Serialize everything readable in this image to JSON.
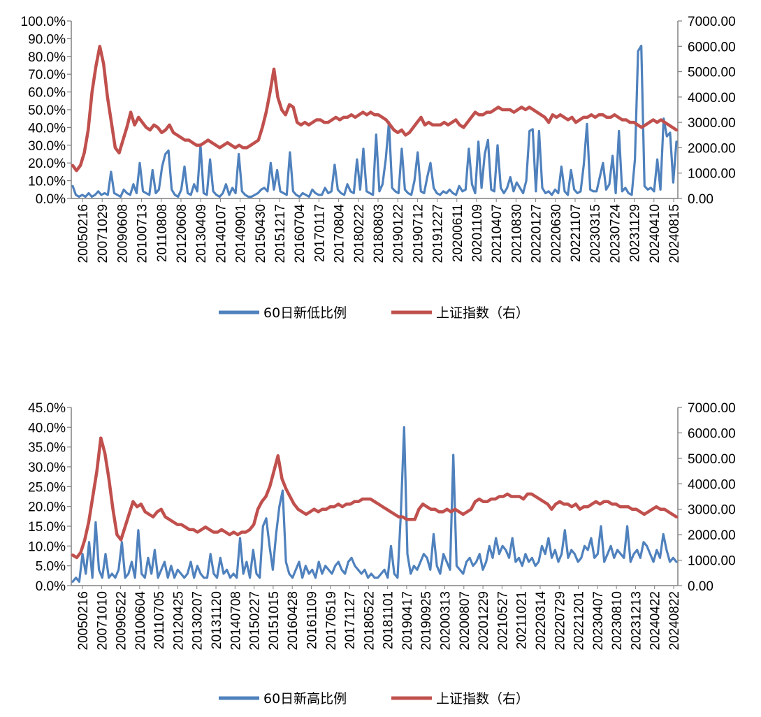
{
  "colors": {
    "blue": "#4F81BD",
    "red": "#C0504D",
    "axis": "#808080"
  },
  "chart_data": [
    {
      "type": "line",
      "title": "",
      "ylim_left": [
        0,
        100
      ],
      "ylim_right": [
        0,
        7000
      ],
      "y_left_ticks": [
        "0.0%",
        "10.0%",
        "20.0%",
        "30.0%",
        "40.0%",
        "50.0%",
        "60.0%",
        "70.0%",
        "80.0%",
        "90.0%",
        "100.0%"
      ],
      "y_right_ticks": [
        "0.00",
        "1000.00",
        "2000.00",
        "3000.00",
        "4000.00",
        "5000.00",
        "6000.00",
        "7000.00"
      ],
      "x_tick_labels": [
        "20050216",
        "20071029",
        "20090608",
        "20100713",
        "20110808",
        "20120608",
        "20130409",
        "20140107",
        "20140901",
        "20150430",
        "20151217",
        "20160704",
        "20170117",
        "20170804",
        "20180222",
        "20180803",
        "20190122",
        "20190712",
        "20191227",
        "20200611",
        "20201109",
        "20210407",
        "20210830",
        "20220127",
        "20220630",
        "20221107",
        "20230315",
        "20230724",
        "20231129",
        "20240410",
        "20240815"
      ],
      "legend_position": "bottom-center",
      "series": [
        {
          "name": "60日新低比例",
          "axis": "left",
          "values": [
            7,
            2,
            1,
            2,
            1,
            3,
            1,
            2,
            4,
            2,
            3,
            2,
            15,
            3,
            2,
            1,
            5,
            3,
            2,
            8,
            3,
            20,
            4,
            3,
            2,
            16,
            3,
            5,
            18,
            25,
            27,
            5,
            2,
            1,
            5,
            18,
            3,
            2,
            8,
            4,
            30,
            3,
            2,
            22,
            4,
            2,
            1,
            3,
            8,
            2,
            6,
            3,
            25,
            4,
            2,
            1,
            1,
            2,
            3,
            5,
            6,
            4,
            20,
            5,
            16,
            4,
            3,
            2,
            26,
            4,
            2,
            1,
            3,
            2,
            1,
            5,
            3,
            2,
            2,
            6,
            3,
            4,
            19,
            5,
            3,
            2,
            8,
            4,
            3,
            22,
            5,
            28,
            4,
            3,
            2,
            36,
            4,
            8,
            22,
            43,
            6,
            4,
            3,
            28,
            5,
            3,
            2,
            10,
            26,
            4,
            3,
            12,
            20,
            6,
            3,
            2,
            4,
            3,
            5,
            3,
            2,
            7,
            4,
            5,
            28,
            8,
            3,
            32,
            6,
            25,
            33,
            5,
            4,
            30,
            6,
            3,
            6,
            12,
            4,
            9,
            6,
            3,
            10,
            38,
            39,
            4,
            38,
            6,
            3,
            4,
            2,
            5,
            3,
            18,
            4,
            2,
            16,
            5,
            3,
            4,
            19,
            42,
            5,
            4,
            4,
            12,
            20,
            5,
            8,
            24,
            3,
            38,
            4,
            6,
            3,
            2,
            22,
            83,
            86,
            7,
            5,
            6,
            4,
            22,
            5,
            45,
            35,
            37,
            9,
            32
          ]
        },
        {
          "name": "上证指数（右）",
          "axis": "right",
          "values": [
            1300,
            1100,
            1300,
            1800,
            2700,
            4200,
            5200,
            6000,
            5300,
            4000,
            3000,
            2000,
            1800,
            2300,
            2800,
            3400,
            2900,
            3200,
            3000,
            2800,
            2700,
            2900,
            2800,
            2600,
            2700,
            2900,
            2600,
            2500,
            2400,
            2300,
            2300,
            2200,
            2100,
            2100,
            2200,
            2300,
            2200,
            2100,
            2000,
            2100,
            2200,
            2100,
            2000,
            2100,
            2000,
            2000,
            2100,
            2200,
            2300,
            2800,
            3400,
            4200,
            5100,
            4000,
            3500,
            3300,
            3700,
            3600,
            3000,
            2900,
            3000,
            2900,
            3000,
            3100,
            3100,
            3000,
            3000,
            3100,
            3200,
            3100,
            3200,
            3200,
            3300,
            3200,
            3300,
            3400,
            3300,
            3400,
            3300,
            3300,
            3200,
            3100,
            2900,
            2700,
            2600,
            2700,
            2500,
            2600,
            2800,
            3000,
            3200,
            2900,
            3000,
            2900,
            2900,
            2900,
            3000,
            2900,
            3000,
            3100,
            2900,
            2800,
            3000,
            3200,
            3400,
            3300,
            3300,
            3400,
            3400,
            3500,
            3600,
            3500,
            3500,
            3500,
            3400,
            3500,
            3600,
            3500,
            3600,
            3500,
            3400,
            3300,
            3200,
            3000,
            3300,
            3200,
            3300,
            3200,
            3100,
            3200,
            3000,
            3100,
            3200,
            3200,
            3300,
            3200,
            3300,
            3300,
            3200,
            3200,
            3300,
            3200,
            3100,
            3100,
            3000,
            3000,
            2900,
            2800,
            2900,
            3000,
            3100,
            3000,
            3100,
            3000,
            2900,
            2800,
            2700
          ]
        }
      ]
    },
    {
      "type": "line",
      "title": "",
      "ylim_left": [
        0,
        45
      ],
      "ylim_right": [
        0,
        7000
      ],
      "y_left_ticks": [
        "0.0%",
        "5.0%",
        "10.0%",
        "15.0%",
        "20.0%",
        "25.0%",
        "30.0%",
        "35.0%",
        "40.0%",
        "45.0%"
      ],
      "y_right_ticks": [
        "0.00",
        "1000.00",
        "2000.00",
        "3000.00",
        "4000.00",
        "5000.00",
        "6000.00",
        "7000.00"
      ],
      "x_tick_labels": [
        "20050216",
        "20071010",
        "20090522",
        "20100604",
        "20110705",
        "20120425",
        "20130207",
        "20131120",
        "20140708",
        "20150227",
        "20151015",
        "20160428",
        "20161109",
        "20170519",
        "20171127",
        "20180522",
        "20181101",
        "20190417",
        "20190925",
        "20200313",
        "20200807",
        "20201229",
        "20210527",
        "20211021",
        "20220314",
        "20220729",
        "20221201",
        "20230407",
        "20230810",
        "20231213",
        "20240422",
        "20240822"
      ],
      "legend_position": "bottom-center",
      "series": [
        {
          "name": "60日新高比例",
          "axis": "left",
          "values": [
            1,
            2,
            1,
            8,
            3,
            11,
            2,
            16,
            4,
            2,
            8,
            2,
            3,
            2,
            4,
            11,
            2,
            3,
            6,
            2,
            14,
            3,
            2,
            7,
            3,
            9,
            2,
            4,
            6,
            2,
            5,
            2,
            4,
            3,
            2,
            3,
            6,
            2,
            5,
            3,
            2,
            2,
            8,
            3,
            2,
            7,
            3,
            4,
            2,
            3,
            2,
            12,
            3,
            6,
            2,
            9,
            3,
            2,
            15,
            17,
            10,
            4,
            13,
            20,
            24,
            6,
            3,
            2,
            4,
            6,
            2,
            5,
            3,
            4,
            2,
            6,
            3,
            5,
            4,
            3,
            5,
            6,
            4,
            3,
            6,
            7,
            5,
            4,
            3,
            4,
            2,
            3,
            2,
            2,
            3,
            4,
            2,
            10,
            3,
            2,
            18,
            40,
            8,
            3,
            5,
            4,
            6,
            8,
            7,
            4,
            13,
            5,
            3,
            8,
            6,
            4,
            33,
            5,
            4,
            3,
            6,
            7,
            5,
            6,
            8,
            4,
            6,
            10,
            7,
            12,
            8,
            10,
            9,
            7,
            12,
            6,
            7,
            5,
            8,
            6,
            7,
            5,
            6,
            10,
            8,
            12,
            7,
            9,
            6,
            8,
            14,
            7,
            9,
            8,
            6,
            7,
            10,
            9,
            12,
            7,
            8,
            15,
            6,
            8,
            10,
            7,
            9,
            8,
            7,
            15,
            6,
            8,
            9,
            7,
            11,
            10,
            8,
            6,
            9,
            7,
            13,
            9,
            6,
            7,
            6
          ]
        },
        {
          "name": "上证指数（右）",
          "axis": "right",
          "values": [
            1200,
            1100,
            1300,
            1800,
            2500,
            3500,
            4500,
            5800,
            5200,
            4200,
            3000,
            2000,
            1800,
            2300,
            2800,
            3300,
            3100,
            3200,
            2900,
            2800,
            2700,
            2900,
            3000,
            2700,
            2600,
            2500,
            2400,
            2400,
            2300,
            2200,
            2200,
            2100,
            2200,
            2300,
            2200,
            2100,
            2100,
            2200,
            2100,
            2000,
            2100,
            2000,
            2100,
            2100,
            2200,
            2400,
            3000,
            3300,
            3500,
            3900,
            4500,
            5100,
            4200,
            3800,
            3500,
            3200,
            3000,
            2900,
            2800,
            2900,
            3000,
            2900,
            3000,
            3000,
            3100,
            3100,
            3200,
            3100,
            3200,
            3200,
            3300,
            3300,
            3400,
            3400,
            3400,
            3300,
            3200,
            3100,
            3000,
            2900,
            2800,
            2700,
            2700,
            2600,
            2600,
            2600,
            3000,
            3200,
            3100,
            3000,
            3000,
            2900,
            2900,
            3000,
            2900,
            3000,
            2900,
            2800,
            2900,
            3000,
            3300,
            3400,
            3300,
            3300,
            3400,
            3400,
            3500,
            3500,
            3600,
            3500,
            3500,
            3500,
            3400,
            3600,
            3600,
            3500,
            3400,
            3300,
            3200,
            3000,
            3200,
            3300,
            3200,
            3200,
            3100,
            3200,
            3000,
            3100,
            3100,
            3200,
            3300,
            3200,
            3300,
            3300,
            3200,
            3200,
            3100,
            3100,
            3100,
            3000,
            3000,
            2900,
            2800,
            2900,
            3000,
            3100,
            3000,
            3000,
            2900,
            2800,
            2700
          ]
        }
      ]
    }
  ]
}
